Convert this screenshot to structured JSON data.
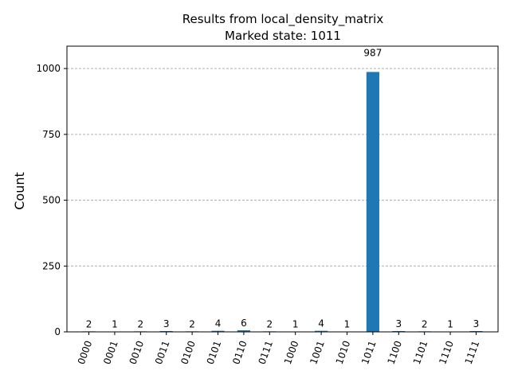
{
  "chart_data": {
    "type": "bar",
    "title": "Results from local_density_matrix",
    "subtitle": "Marked state: 1011",
    "xlabel": "",
    "ylabel": "Count",
    "categories": [
      "0000",
      "0001",
      "0010",
      "0011",
      "0100",
      "0101",
      "0110",
      "0111",
      "1000",
      "1001",
      "1010",
      "1011",
      "1100",
      "1101",
      "1110",
      "1111"
    ],
    "values": [
      2,
      1,
      2,
      3,
      2,
      4,
      6,
      2,
      1,
      4,
      1,
      987,
      3,
      2,
      1,
      3
    ],
    "ylim": [
      0,
      1085
    ],
    "yticks": [
      0,
      250,
      500,
      750,
      1000
    ],
    "grid": "y-dashed",
    "bar_color": "#1f77b4",
    "show_data_labels": true
  }
}
